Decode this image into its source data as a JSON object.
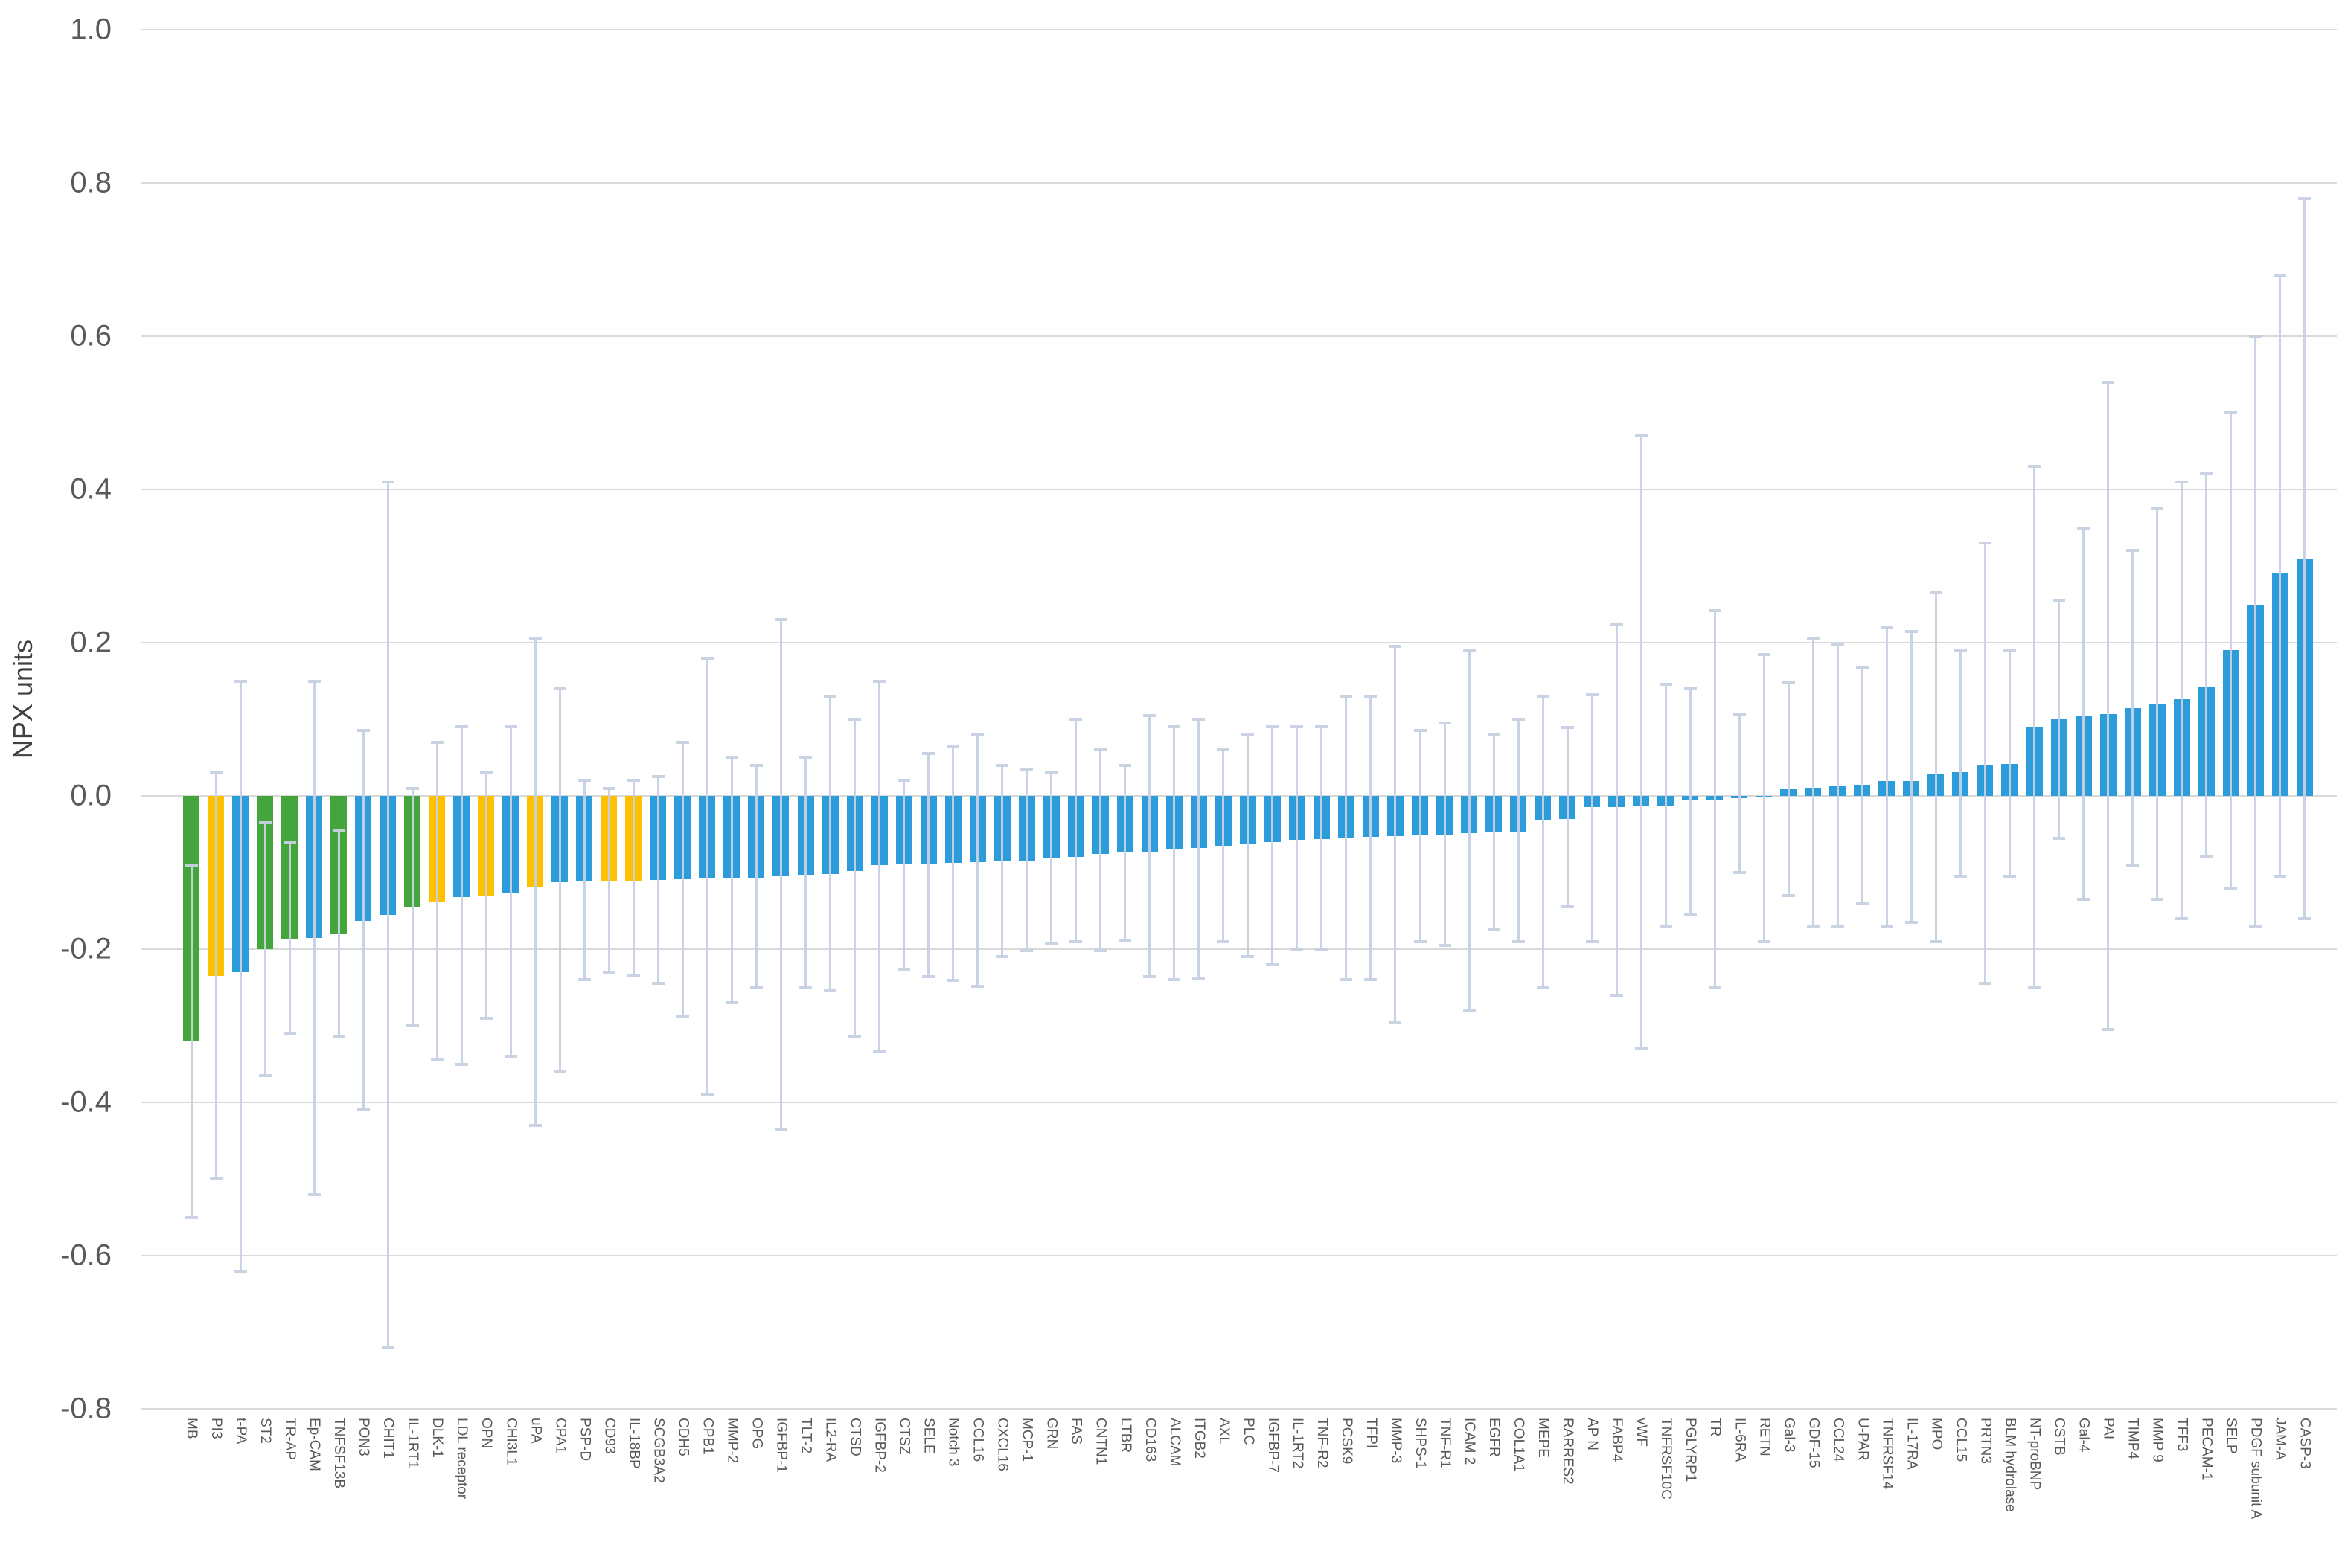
{
  "chart_data": {
    "type": "bar",
    "title": "",
    "xlabel": "",
    "ylabel": "NPX units",
    "ylim": [
      -0.8,
      1.0
    ],
    "yticks": [
      "1.0",
      "0.8",
      "0.6",
      "0.4",
      "0.2",
      "0.0",
      "-0.2",
      "-0.4",
      "-0.6",
      "-0.8"
    ],
    "grid": "horizontal",
    "legend": "none",
    "colors": {
      "green": "#43a53c",
      "yellow": "#ffc000",
      "blue": "#2d9cdb",
      "error_bar": "#c7d1e3",
      "gridline": "#d9d9d9",
      "tick_text": "#595959"
    },
    "series_note": "bars sorted ascending by NPX difference; whiskers = confidence interval [lo, hi]",
    "points": [
      {
        "label": "MB",
        "value": -0.32,
        "color": "green",
        "lo": -0.55,
        "hi": -0.09
      },
      {
        "label": "PI3",
        "value": -0.235,
        "color": "yellow",
        "lo": -0.5,
        "hi": 0.03
      },
      {
        "label": "t-PA",
        "value": -0.23,
        "color": "blue",
        "lo": -0.62,
        "hi": 0.15
      },
      {
        "label": "ST2",
        "value": -0.2,
        "color": "green",
        "lo": -0.365,
        "hi": -0.035
      },
      {
        "label": "TR-AP",
        "value": -0.187,
        "color": "green",
        "lo": -0.31,
        "hi": -0.06
      },
      {
        "label": "Ep-CAM",
        "value": -0.185,
        "color": "blue",
        "lo": -0.52,
        "hi": 0.15
      },
      {
        "label": "TNFSF13B",
        "value": -0.18,
        "color": "green",
        "lo": -0.315,
        "hi": -0.045
      },
      {
        "label": "PON3",
        "value": -0.163,
        "color": "blue",
        "lo": -0.41,
        "hi": 0.085
      },
      {
        "label": "CHIT1",
        "value": -0.155,
        "color": "blue",
        "lo": -0.72,
        "hi": 0.41
      },
      {
        "label": "IL-1RT1",
        "value": -0.145,
        "color": "green",
        "lo": -0.3,
        "hi": 0.01
      },
      {
        "label": "DLK-1",
        "value": -0.138,
        "color": "yellow",
        "lo": -0.345,
        "hi": 0.07
      },
      {
        "label": "LDL receptor",
        "value": -0.132,
        "color": "blue",
        "lo": -0.35,
        "hi": 0.09
      },
      {
        "label": "OPN",
        "value": -0.13,
        "color": "yellow",
        "lo": -0.29,
        "hi": 0.03
      },
      {
        "label": "CHI3L1",
        "value": -0.126,
        "color": "blue",
        "lo": -0.34,
        "hi": 0.09
      },
      {
        "label": "uPA",
        "value": -0.119,
        "color": "yellow",
        "lo": -0.43,
        "hi": 0.205
      },
      {
        "label": "CPA1",
        "value": -0.113,
        "color": "blue",
        "lo": -0.36,
        "hi": 0.14
      },
      {
        "label": "PSP-D",
        "value": -0.112,
        "color": "blue",
        "lo": -0.24,
        "hi": 0.02
      },
      {
        "label": "CD93",
        "value": -0.111,
        "color": "yellow",
        "lo": -0.23,
        "hi": 0.01
      },
      {
        "label": "IL-18BP",
        "value": -0.111,
        "color": "yellow",
        "lo": -0.235,
        "hi": 0.02
      },
      {
        "label": "SCGB3A2",
        "value": -0.11,
        "color": "blue",
        "lo": -0.245,
        "hi": 0.025
      },
      {
        "label": "CDH5",
        "value": -0.109,
        "color": "blue",
        "lo": -0.287,
        "hi": 0.07
      },
      {
        "label": "CPB1",
        "value": -0.108,
        "color": "blue",
        "lo": -0.39,
        "hi": 0.18
      },
      {
        "label": "MMP-2",
        "value": -0.108,
        "color": "blue",
        "lo": -0.27,
        "hi": 0.05
      },
      {
        "label": "OPG",
        "value": -0.107,
        "color": "blue",
        "lo": -0.25,
        "hi": 0.04
      },
      {
        "label": "IGFBP-1",
        "value": -0.105,
        "color": "blue",
        "lo": -0.435,
        "hi": 0.23
      },
      {
        "label": "TLT-2",
        "value": -0.104,
        "color": "blue",
        "lo": -0.25,
        "hi": 0.05
      },
      {
        "label": "IL2-RA",
        "value": -0.102,
        "color": "blue",
        "lo": -0.253,
        "hi": 0.13
      },
      {
        "label": "CTSD",
        "value": -0.098,
        "color": "blue",
        "lo": -0.314,
        "hi": 0.1
      },
      {
        "label": "IGFBP-2",
        "value": -0.09,
        "color": "blue",
        "lo": -0.333,
        "hi": 0.15
      },
      {
        "label": "CTSZ",
        "value": -0.089,
        "color": "blue",
        "lo": -0.226,
        "hi": 0.02
      },
      {
        "label": "SELE",
        "value": -0.088,
        "color": "blue",
        "lo": -0.236,
        "hi": 0.055
      },
      {
        "label": "Notch 3",
        "value": -0.087,
        "color": "blue",
        "lo": -0.241,
        "hi": 0.065
      },
      {
        "label": "CCL16",
        "value": -0.086,
        "color": "blue",
        "lo": -0.249,
        "hi": 0.08
      },
      {
        "label": "CXCL16",
        "value": -0.085,
        "color": "blue",
        "lo": -0.21,
        "hi": 0.04
      },
      {
        "label": "MCP-1",
        "value": -0.084,
        "color": "blue",
        "lo": -0.202,
        "hi": 0.035
      },
      {
        "label": "GRN",
        "value": -0.082,
        "color": "blue",
        "lo": -0.193,
        "hi": 0.03
      },
      {
        "label": "FAS",
        "value": -0.08,
        "color": "blue",
        "lo": -0.19,
        "hi": 0.1
      },
      {
        "label": "CNTN1",
        "value": -0.076,
        "color": "blue",
        "lo": -0.202,
        "hi": 0.06
      },
      {
        "label": "LTBR",
        "value": -0.074,
        "color": "blue",
        "lo": -0.188,
        "hi": 0.04
      },
      {
        "label": "CD163",
        "value": -0.073,
        "color": "blue",
        "lo": -0.236,
        "hi": 0.105
      },
      {
        "label": "ALCAM",
        "value": -0.07,
        "color": "blue",
        "lo": -0.24,
        "hi": 0.09
      },
      {
        "label": "ITGB2",
        "value": -0.068,
        "color": "blue",
        "lo": -0.239,
        "hi": 0.1
      },
      {
        "label": "AXL",
        "value": -0.065,
        "color": "blue",
        "lo": -0.19,
        "hi": 0.06
      },
      {
        "label": "PLC",
        "value": -0.062,
        "color": "blue",
        "lo": -0.21,
        "hi": 0.08
      },
      {
        "label": "IGFBP-7",
        "value": -0.06,
        "color": "blue",
        "lo": -0.22,
        "hi": 0.09
      },
      {
        "label": "IL-1RT2",
        "value": -0.057,
        "color": "blue",
        "lo": -0.2,
        "hi": 0.09
      },
      {
        "label": "TNF-R2",
        "value": -0.056,
        "color": "blue",
        "lo": -0.2,
        "hi": 0.09
      },
      {
        "label": "PCSK9",
        "value": -0.054,
        "color": "blue",
        "lo": -0.24,
        "hi": 0.13
      },
      {
        "label": "TFPI",
        "value": -0.053,
        "color": "blue",
        "lo": -0.24,
        "hi": 0.13
      },
      {
        "label": "MMP-3",
        "value": -0.052,
        "color": "blue",
        "lo": -0.295,
        "hi": 0.195
      },
      {
        "label": "SHPS-1",
        "value": -0.05,
        "color": "blue",
        "lo": -0.19,
        "hi": 0.085
      },
      {
        "label": "TNF-R1",
        "value": -0.05,
        "color": "blue",
        "lo": -0.195,
        "hi": 0.095
      },
      {
        "label": "ICAM 2",
        "value": -0.049,
        "color": "blue",
        "lo": -0.28,
        "hi": 0.19
      },
      {
        "label": "EGFR",
        "value": -0.048,
        "color": "blue",
        "lo": -0.175,
        "hi": 0.08
      },
      {
        "label": "COL1A1",
        "value": -0.047,
        "color": "blue",
        "lo": -0.19,
        "hi": 0.1
      },
      {
        "label": "MEPE",
        "value": -0.031,
        "color": "blue",
        "lo": -0.25,
        "hi": 0.13
      },
      {
        "label": "RARRES2",
        "value": -0.03,
        "color": "blue",
        "lo": -0.145,
        "hi": 0.089
      },
      {
        "label": "AP N",
        "value": -0.015,
        "color": "blue",
        "lo": -0.19,
        "hi": 0.132
      },
      {
        "label": "FABP4",
        "value": -0.015,
        "color": "blue",
        "lo": -0.26,
        "hi": 0.224
      },
      {
        "label": "vWF",
        "value": -0.013,
        "color": "blue",
        "lo": -0.33,
        "hi": 0.47
      },
      {
        "label": "TNFRSF10C",
        "value": -0.013,
        "color": "blue",
        "lo": -0.17,
        "hi": 0.146
      },
      {
        "label": "PGLYRP1",
        "value": -0.006,
        "color": "blue",
        "lo": -0.155,
        "hi": 0.141
      },
      {
        "label": "TR",
        "value": -0.006,
        "color": "blue",
        "lo": -0.25,
        "hi": 0.242
      },
      {
        "label": "IL-6RA",
        "value": -0.003,
        "color": "blue",
        "lo": -0.1,
        "hi": 0.106
      },
      {
        "label": "RETN",
        "value": -0.002,
        "color": "blue",
        "lo": -0.19,
        "hi": 0.184
      },
      {
        "label": "Gal-3",
        "value": 0.009,
        "color": "blue",
        "lo": -0.13,
        "hi": 0.148
      },
      {
        "label": "GDF-15",
        "value": 0.011,
        "color": "blue",
        "lo": -0.17,
        "hi": 0.205
      },
      {
        "label": "CCL24",
        "value": 0.013,
        "color": "blue",
        "lo": -0.17,
        "hi": 0.198
      },
      {
        "label": "U-PAR",
        "value": 0.014,
        "color": "blue",
        "lo": -0.14,
        "hi": 0.167
      },
      {
        "label": "TNFRSF14",
        "value": 0.019,
        "color": "blue",
        "lo": -0.17,
        "hi": 0.22
      },
      {
        "label": "IL-17RA",
        "value": 0.019,
        "color": "blue",
        "lo": -0.165,
        "hi": 0.215
      },
      {
        "label": "MPO",
        "value": 0.029,
        "color": "blue",
        "lo": -0.19,
        "hi": 0.265
      },
      {
        "label": "CCL15",
        "value": 0.031,
        "color": "blue",
        "lo": -0.105,
        "hi": 0.19
      },
      {
        "label": "PRTN3",
        "value": 0.04,
        "color": "blue",
        "lo": -0.245,
        "hi": 0.33
      },
      {
        "label": "BLM hydrolase",
        "value": 0.042,
        "color": "blue",
        "lo": -0.105,
        "hi": 0.19
      },
      {
        "label": "NT-proBNP",
        "value": 0.089,
        "color": "blue",
        "lo": -0.25,
        "hi": 0.43
      },
      {
        "label": "CSTB",
        "value": 0.1,
        "color": "blue",
        "lo": -0.055,
        "hi": 0.255
      },
      {
        "label": "Gal-4",
        "value": 0.105,
        "color": "blue",
        "lo": -0.135,
        "hi": 0.35
      },
      {
        "label": "PAI",
        "value": 0.107,
        "color": "blue",
        "lo": -0.305,
        "hi": 0.54
      },
      {
        "label": "TIMP4",
        "value": 0.115,
        "color": "blue",
        "lo": -0.09,
        "hi": 0.32
      },
      {
        "label": "MMP 9",
        "value": 0.12,
        "color": "blue",
        "lo": -0.135,
        "hi": 0.375
      },
      {
        "label": "TFF3",
        "value": 0.126,
        "color": "blue",
        "lo": -0.16,
        "hi": 0.41
      },
      {
        "label": "PECAM-1",
        "value": 0.143,
        "color": "blue",
        "lo": -0.08,
        "hi": 0.42
      },
      {
        "label": "SELP",
        "value": 0.19,
        "color": "blue",
        "lo": -0.12,
        "hi": 0.5
      },
      {
        "label": "PDGF subunit A",
        "value": 0.25,
        "color": "blue",
        "lo": -0.17,
        "hi": 0.6
      },
      {
        "label": "JAM-A",
        "value": 0.29,
        "color": "blue",
        "lo": -0.105,
        "hi": 0.68
      },
      {
        "label": "CASP-3",
        "value": 0.31,
        "color": "blue",
        "lo": -0.16,
        "hi": 0.78
      }
    ]
  }
}
